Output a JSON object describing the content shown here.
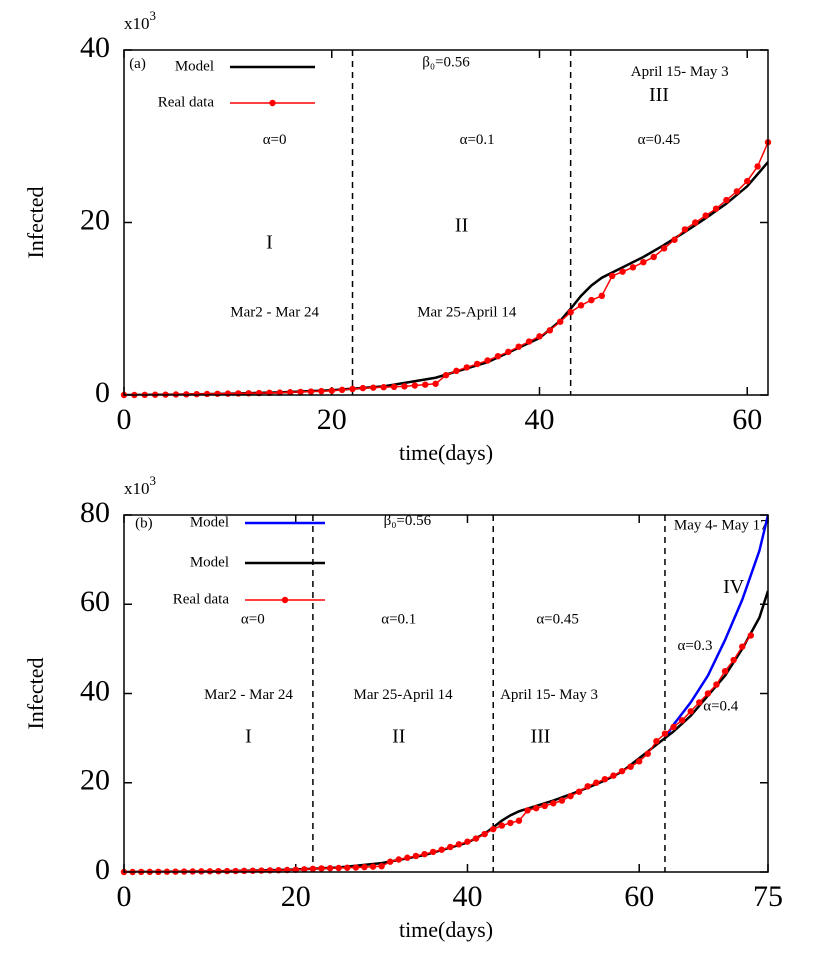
{
  "chart_data": [
    {
      "type": "line",
      "x_label": "time(days)",
      "y_label": "Infected",
      "y_multiplier_base": "x10",
      "y_multiplier_exp": "3",
      "xlim": [
        0,
        62
      ],
      "xticks": [
        0,
        20,
        40,
        60
      ],
      "ylim": [
        0,
        40
      ],
      "yticks": [
        0,
        20,
        40
      ],
      "vlines": [
        22,
        43
      ],
      "annotations": [
        "(a)",
        "β₀=0.56",
        "April 15- May 3",
        "III",
        "α=0",
        "α=0.1",
        "α=0.45",
        "I",
        "II",
        "Mar2 - Mar 24",
        "Mar 25-April 14"
      ],
      "series": [
        {
          "name": "Model",
          "color": "#000000",
          "markers": false,
          "x": [
            0,
            5,
            10,
            15,
            20,
            25,
            30,
            35,
            40,
            42,
            43,
            44,
            45,
            46,
            48,
            50,
            52,
            54,
            56,
            58,
            60,
            62
          ],
          "values": [
            0,
            0.05,
            0.15,
            0.3,
            0.55,
            1.0,
            2.0,
            3.8,
            6.6,
            8.6,
            10.0,
            11.5,
            12.7,
            13.6,
            14.8,
            16.0,
            17.4,
            18.9,
            20.5,
            22.2,
            24.2,
            27.0
          ]
        },
        {
          "name": "Real data",
          "color": "#ff0000",
          "markers": true,
          "x": [
            0,
            1,
            2,
            3,
            4,
            5,
            6,
            7,
            8,
            9,
            10,
            11,
            12,
            13,
            14,
            15,
            16,
            17,
            18,
            19,
            20,
            21,
            22,
            23,
            24,
            25,
            26,
            27,
            28,
            29,
            30,
            31,
            32,
            33,
            34,
            35,
            36,
            37,
            38,
            39,
            40,
            41,
            42,
            43,
            44,
            45,
            46,
            47,
            48,
            49,
            50,
            51,
            52,
            53,
            54,
            55,
            56,
            57,
            58,
            59,
            60,
            61,
            62
          ],
          "values": [
            0,
            0,
            0.02,
            0.03,
            0.04,
            0.06,
            0.08,
            0.1,
            0.12,
            0.14,
            0.16,
            0.18,
            0.2,
            0.22,
            0.25,
            0.28,
            0.32,
            0.36,
            0.4,
            0.45,
            0.5,
            0.6,
            0.7,
            0.8,
            0.85,
            0.9,
            0.95,
            1.0,
            1.1,
            1.2,
            1.3,
            2.3,
            2.8,
            3.2,
            3.6,
            4.0,
            4.5,
            5.0,
            5.6,
            6.2,
            6.8,
            7.5,
            8.5,
            9.6,
            10.4,
            11.0,
            11.5,
            13.8,
            14.3,
            14.8,
            15.4,
            16.0,
            17.0,
            18.0,
            19.2,
            20.0,
            20.8,
            21.6,
            22.6,
            23.6,
            24.8,
            26.5,
            29.3
          ]
        }
      ]
    },
    {
      "type": "line",
      "x_label": "time(days)",
      "y_label": "Infected",
      "y_multiplier_base": "x10",
      "y_multiplier_exp": "3",
      "xlim": [
        0,
        75
      ],
      "xticks": [
        0,
        20,
        40,
        60,
        75
      ],
      "ylim": [
        0,
        80
      ],
      "yticks": [
        0,
        20,
        40,
        60,
        80
      ],
      "vlines": [
        22,
        43,
        63
      ],
      "annotations": [
        "(b)",
        "β₀=0.56",
        "May 4- May 17",
        "IV",
        "α=0",
        "α=0.1",
        "α=0.45",
        "α=0.3",
        "α=0.4",
        "Mar2 - Mar 24",
        "Mar 25-April 14",
        "April 15- May 3",
        "I",
        "II",
        "III"
      ],
      "series": [
        {
          "name": "Model",
          "color": "#0000ff",
          "markers": false,
          "x": [
            63,
            64,
            66,
            68,
            70,
            72,
            74,
            75
          ],
          "values": [
            30,
            33,
            38,
            44,
            52,
            61,
            72,
            80
          ]
        },
        {
          "name": "Model",
          "color": "#000000",
          "markers": false,
          "x": [
            0,
            5,
            10,
            15,
            20,
            25,
            30,
            35,
            40,
            42,
            43,
            44,
            45,
            46,
            48,
            50,
            52,
            54,
            56,
            58,
            60,
            62,
            63,
            64,
            66,
            68,
            70,
            72,
            74,
            75
          ],
          "values": [
            0,
            0.05,
            0.15,
            0.3,
            0.55,
            1.0,
            2.0,
            3.8,
            6.6,
            8.6,
            10.0,
            11.5,
            12.7,
            13.6,
            14.8,
            16.0,
            17.4,
            18.9,
            20.5,
            22.5,
            25.5,
            28.5,
            30,
            31.5,
            35,
            39.5,
            44,
            50,
            57,
            63
          ]
        },
        {
          "name": "Real data",
          "color": "#ff0000",
          "markers": true,
          "x": [
            0,
            1,
            2,
            3,
            4,
            5,
            6,
            7,
            8,
            9,
            10,
            11,
            12,
            13,
            14,
            15,
            16,
            17,
            18,
            19,
            20,
            21,
            22,
            23,
            24,
            25,
            26,
            27,
            28,
            29,
            30,
            31,
            32,
            33,
            34,
            35,
            36,
            37,
            38,
            39,
            40,
            41,
            42,
            43,
            44,
            45,
            46,
            47,
            48,
            49,
            50,
            51,
            52,
            53,
            54,
            55,
            56,
            57,
            58,
            59,
            60,
            61,
            62,
            63,
            64,
            65,
            66,
            67,
            68,
            69,
            70,
            71,
            72,
            73
          ],
          "values": [
            0,
            0,
            0.02,
            0.03,
            0.04,
            0.06,
            0.08,
            0.1,
            0.12,
            0.14,
            0.16,
            0.18,
            0.2,
            0.22,
            0.25,
            0.28,
            0.32,
            0.36,
            0.4,
            0.45,
            0.5,
            0.6,
            0.7,
            0.8,
            0.85,
            0.9,
            0.95,
            1.0,
            1.1,
            1.2,
            1.3,
            2.3,
            2.8,
            3.2,
            3.6,
            4.0,
            4.5,
            5.0,
            5.6,
            6.2,
            6.8,
            7.5,
            8.5,
            9.6,
            10.4,
            11.0,
            11.5,
            13.8,
            14.3,
            14.8,
            15.4,
            16.0,
            17.0,
            18.0,
            19.2,
            20.0,
            20.8,
            21.6,
            22.6,
            23.6,
            24.8,
            26.5,
            29.3,
            31,
            32.5,
            34,
            36,
            38,
            40,
            42,
            45,
            47.5,
            50.5,
            53
          ]
        }
      ]
    }
  ]
}
